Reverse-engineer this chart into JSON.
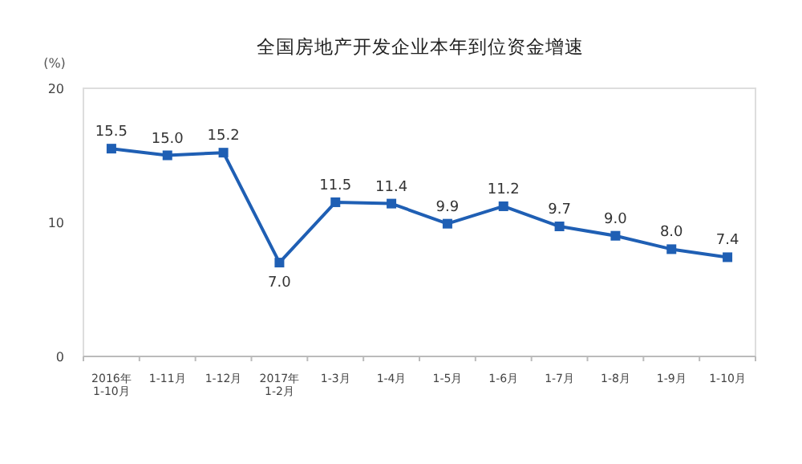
{
  "chart_data": {
    "type": "line",
    "title": "全国房地产开发企业本年到位资金增速",
    "ylabel": "(%)",
    "categories": [
      "2016年\n1-10月",
      "1-11月",
      "1-12月",
      "2017年\n1-2月",
      "1-3月",
      "1-4月",
      "1-5月",
      "1-6月",
      "1-7月",
      "1-8月",
      "1-9月",
      "1-10月"
    ],
    "series": [
      {
        "color": "#1f5fb4",
        "values": [
          15.5,
          15.0,
          15.2,
          7.0,
          11.5,
          11.4,
          9.9,
          11.2,
          9.7,
          9.0,
          8.0,
          7.4
        ],
        "value_labels": [
          "15.5",
          "15.0",
          "15.2",
          "7.0",
          "11.5",
          "11.4",
          "9.9",
          "11.2",
          "9.7",
          "9.0",
          "8.0",
          "7.4"
        ]
      }
    ],
    "ylim": [
      0,
      20
    ],
    "yticks": [
      0,
      10,
      20
    ],
    "marker": "square",
    "grid": false
  }
}
